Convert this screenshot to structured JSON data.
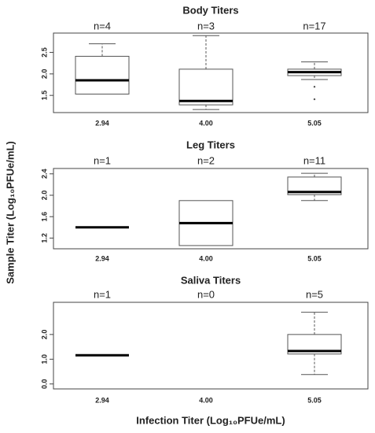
{
  "ylabel": "Sample Titer (Log₁₀PFUe/mL)",
  "xlabel": "Infection Titer (Log₁₀PFUe/mL)",
  "chart_data": [
    {
      "type": "box",
      "title": "Body Titers",
      "categories": [
        "2.94",
        "4.00",
        "5.05"
      ],
      "annotations": [
        "n=4",
        "n=3",
        "n=17"
      ],
      "boxes": [
        {
          "min": 1.53,
          "q1": 1.53,
          "median": 1.85,
          "q3": 2.41,
          "max": 2.7,
          "outliers": []
        },
        {
          "min": 1.17,
          "q1": 1.28,
          "median": 1.37,
          "q3": 2.11,
          "max": 2.89,
          "outliers": []
        },
        {
          "min": 1.87,
          "q1": 1.96,
          "median": 2.04,
          "q3": 2.11,
          "max": 2.28,
          "outliers": [
            1.7,
            1.41
          ]
        }
      ],
      "ylim": [
        1.1,
        2.95
      ],
      "yticks": [
        1.5,
        2.0,
        2.5
      ],
      "color": "#333333"
    },
    {
      "type": "box",
      "title": "Leg Titers",
      "categories": [
        "2.94",
        "4.00",
        "5.05"
      ],
      "annotations": [
        "n=1",
        "n=2",
        "n=11"
      ],
      "boxes": [
        {
          "min": 1.4,
          "q1": 1.4,
          "median": 1.4,
          "q3": 1.4,
          "max": 1.4,
          "outliers": []
        },
        {
          "min": 1.06,
          "q1": 1.06,
          "median": 1.48,
          "q3": 1.9,
          "max": 1.9,
          "outliers": []
        },
        {
          "min": 1.9,
          "q1": 2.01,
          "median": 2.06,
          "q3": 2.34,
          "max": 2.41,
          "outliers": []
        }
      ],
      "ylim": [
        1.0,
        2.5
      ],
      "yticks": [
        1.2,
        1.6,
        2.0,
        2.4
      ],
      "color": "#333333"
    },
    {
      "type": "box",
      "title": "Saliva Titers",
      "categories": [
        "2.94",
        "4.00",
        "5.05"
      ],
      "annotations": [
        "n=1",
        "n=0",
        "n=5"
      ],
      "boxes": [
        {
          "min": 1.16,
          "q1": 1.16,
          "median": 1.16,
          "q3": 1.16,
          "max": 1.16,
          "outliers": []
        },
        null,
        {
          "min": 0.38,
          "q1": 1.21,
          "median": 1.33,
          "q3": 2.0,
          "max": 2.9,
          "outliers": []
        }
      ],
      "ylim": [
        -0.2,
        3.3
      ],
      "yticks": [
        0.0,
        1.0,
        2.0
      ],
      "color": "#333333"
    }
  ]
}
